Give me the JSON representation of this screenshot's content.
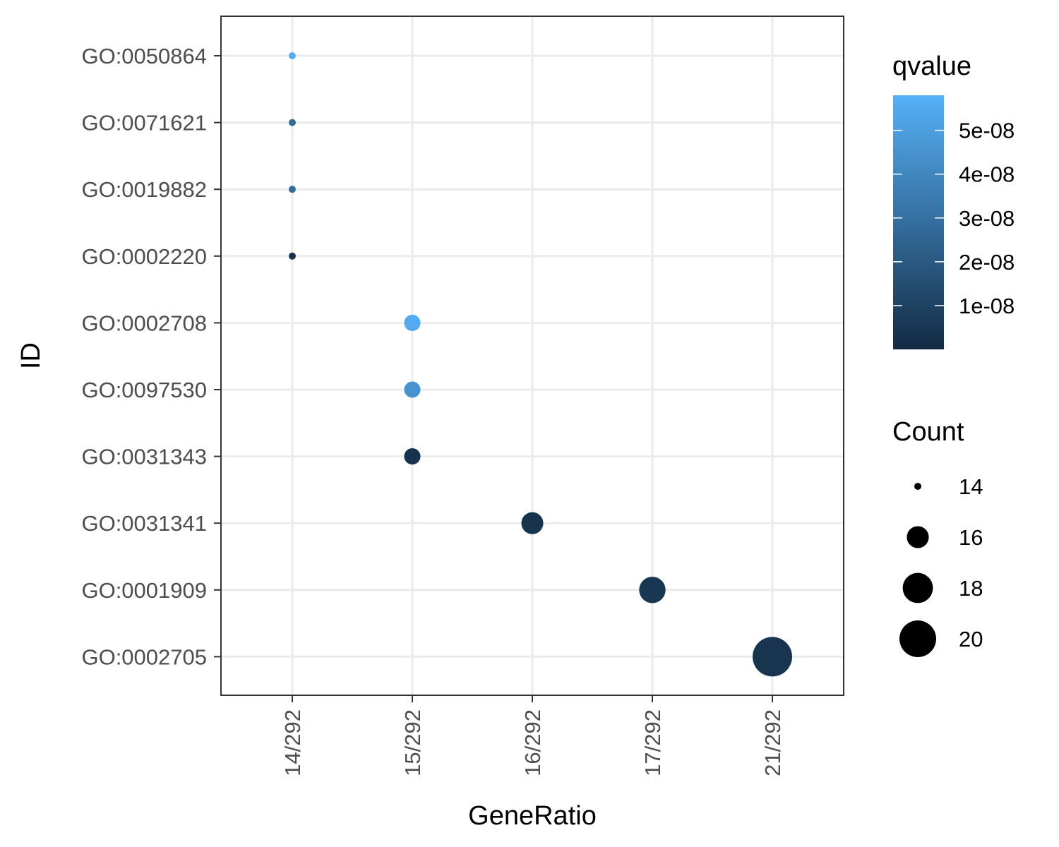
{
  "chart_data": {
    "type": "scatter",
    "xlabel": "GeneRatio",
    "ylabel": "ID",
    "x_categories": [
      "14/292",
      "15/292",
      "16/292",
      "17/292",
      "21/292"
    ],
    "y_categories": [
      "GO:0050864",
      "GO:0071621",
      "GO:0019882",
      "GO:0002220",
      "GO:0002708",
      "GO:0097530",
      "GO:0031343",
      "GO:0031341",
      "GO:0001909",
      "GO:0002705"
    ],
    "points": [
      {
        "id": "GO:0050864",
        "gene_ratio": "14/292",
        "count": 14,
        "qvalue": 5.6e-08
      },
      {
        "id": "GO:0071621",
        "gene_ratio": "14/292",
        "count": 14,
        "qvalue": 2.8e-08
      },
      {
        "id": "GO:0019882",
        "gene_ratio": "14/292",
        "count": 14,
        "qvalue": 2.8e-08
      },
      {
        "id": "GO:0002220",
        "gene_ratio": "14/292",
        "count": 14,
        "qvalue": 3e-09
      },
      {
        "id": "GO:0002708",
        "gene_ratio": "15/292",
        "count": 15,
        "qvalue": 5.5e-08
      },
      {
        "id": "GO:0097530",
        "gene_ratio": "15/292",
        "count": 15,
        "qvalue": 4.5e-08
      },
      {
        "id": "GO:0031343",
        "gene_ratio": "15/292",
        "count": 15,
        "qvalue": 3e-09
      },
      {
        "id": "GO:0031341",
        "gene_ratio": "16/292",
        "count": 16,
        "qvalue": 3e-09
      },
      {
        "id": "GO:0001909",
        "gene_ratio": "17/292",
        "count": 17,
        "qvalue": 5e-09
      },
      {
        "id": "GO:0002705",
        "gene_ratio": "21/292",
        "count": 21,
        "qvalue": 4e-09
      }
    ],
    "color_legend": {
      "title": "qvalue",
      "range": [
        0,
        5.8e-08
      ],
      "low_color": "#132B43",
      "high_color": "#56B1F7",
      "ticks": [
        {
          "value": 1e-08,
          "label": "1e-08"
        },
        {
          "value": 2e-08,
          "label": "2e-08"
        },
        {
          "value": 3e-08,
          "label": "3e-08"
        },
        {
          "value": 4e-08,
          "label": "4e-08"
        },
        {
          "value": 5e-08,
          "label": "5e-08"
        }
      ]
    },
    "size_legend": {
      "title": "Count",
      "entries": [
        {
          "value": 14,
          "label": "14"
        },
        {
          "value": 16,
          "label": "16"
        },
        {
          "value": 18,
          "label": "18"
        },
        {
          "value": 20,
          "label": "20"
        }
      ]
    },
    "grid": true,
    "legend_position": "right",
    "panel_border": "#333333",
    "grid_color": "#ebebeb",
    "tick_label_color": "#4d4d4d"
  }
}
